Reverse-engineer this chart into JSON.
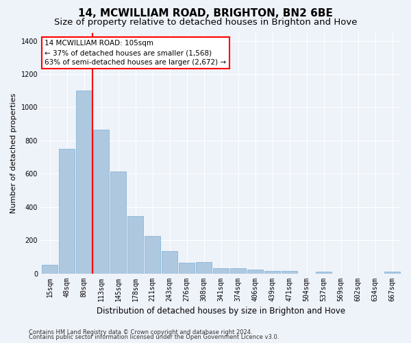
{
  "title": "14, MCWILLIAM ROAD, BRIGHTON, BN2 6BE",
  "subtitle": "Size of property relative to detached houses in Brighton and Hove",
  "xlabel": "Distribution of detached houses by size in Brighton and Hove",
  "ylabel": "Number of detached properties",
  "footnote1": "Contains HM Land Registry data © Crown copyright and database right 2024.",
  "footnote2": "Contains public sector information licensed under the Open Government Licence v3.0.",
  "bar_labels": [
    "15sqm",
    "48sqm",
    "80sqm",
    "113sqm",
    "145sqm",
    "178sqm",
    "211sqm",
    "243sqm",
    "276sqm",
    "308sqm",
    "341sqm",
    "374sqm",
    "406sqm",
    "439sqm",
    "471sqm",
    "504sqm",
    "537sqm",
    "569sqm",
    "602sqm",
    "634sqm",
    "667sqm"
  ],
  "bar_values": [
    50,
    750,
    1100,
    865,
    615,
    345,
    225,
    135,
    65,
    70,
    30,
    30,
    22,
    15,
    15,
    0,
    12,
    0,
    0,
    0,
    12
  ],
  "bar_color": "#aec8e0",
  "bar_edge_color": "#7bafd4",
  "ylim": [
    0,
    1450
  ],
  "yticks": [
    0,
    200,
    400,
    600,
    800,
    1000,
    1200,
    1400
  ],
  "red_line_bar_index": 2,
  "annotation_title": "14 MCWILLIAM ROAD: 105sqm",
  "annotation_line1": "← 37% of detached houses are smaller (1,568)",
  "annotation_line2": "63% of semi-detached houses are larger (2,672) →",
  "bg_color": "#eef2f9",
  "grid_color": "#ffffff",
  "title_fontsize": 11,
  "subtitle_fontsize": 9.5,
  "ylabel_fontsize": 8,
  "xlabel_fontsize": 8.5,
  "tick_fontsize": 7,
  "footnote_fontsize": 6,
  "annot_fontsize": 7.5
}
